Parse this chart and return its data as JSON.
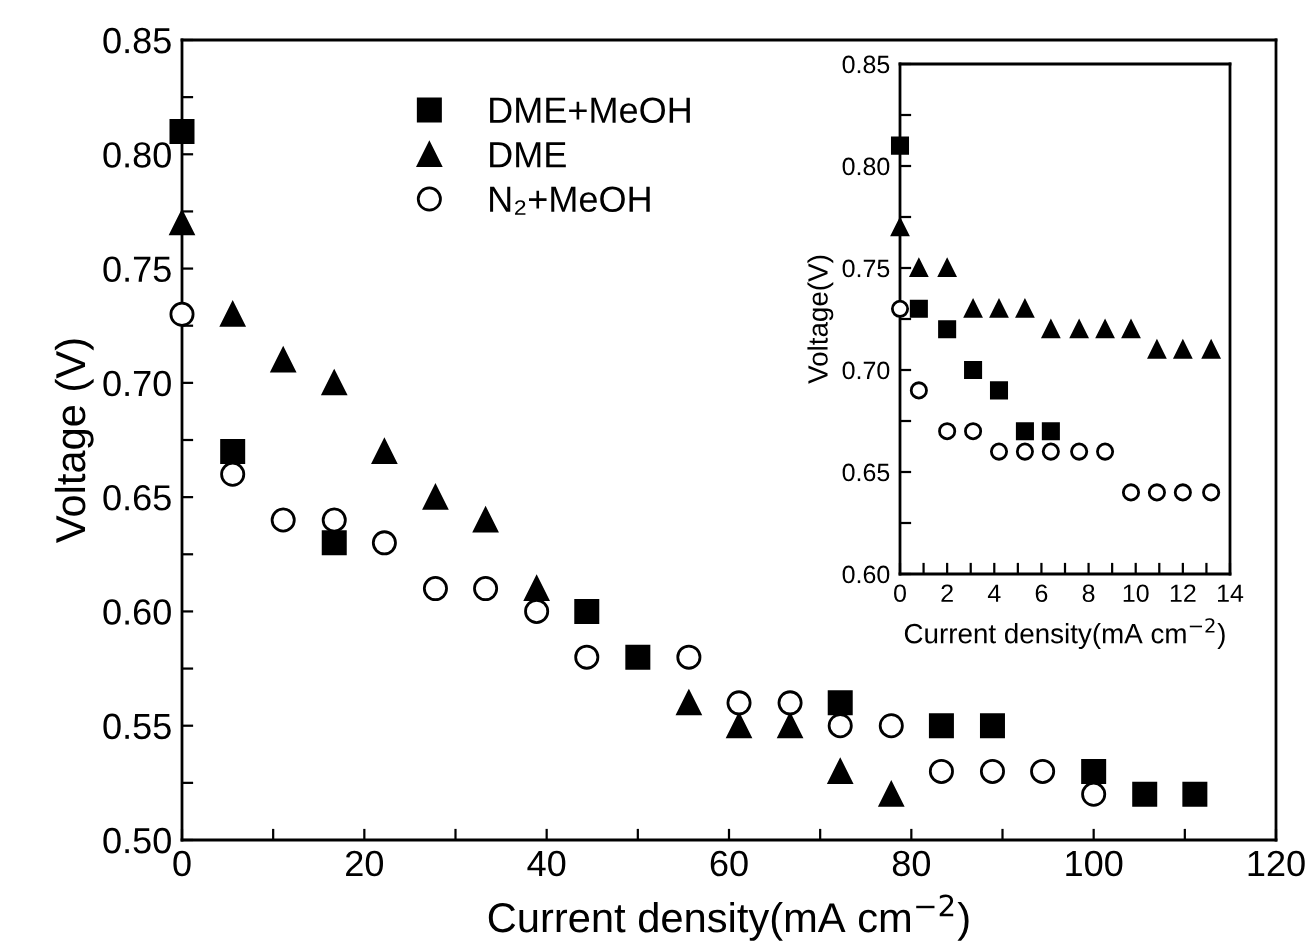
{
  "chart_data": [
    {
      "type": "scatter",
      "xlabel": "Current density(mA cm$^{−2}$)",
      "ylabel": "Voltage (V)",
      "xlim": [
        0,
        120
      ],
      "ylim": [
        0.5,
        0.85
      ],
      "xticks": [
        0,
        {
          "value": 10,
          "label": null
        },
        20,
        {
          "value": 30,
          "label": null
        },
        40,
        {
          "value": 50,
          "label": null
        },
        60,
        {
          "value": 70,
          "label": null
        },
        80,
        {
          "value": 90,
          "label": null
        },
        100,
        {
          "value": 110,
          "label": null
        },
        120
      ],
      "yticks": [
        {
          "value": 0.5,
          "label": "0.50"
        },
        {
          "value": 0.525,
          "label": null
        },
        {
          "value": 0.55,
          "label": "0.55"
        },
        {
          "value": 0.575,
          "label": null
        },
        {
          "value": 0.6,
          "label": "0.60"
        },
        {
          "value": 0.625,
          "label": null
        },
        {
          "value": 0.65,
          "label": "0.65"
        },
        {
          "value": 0.675,
          "label": null
        },
        {
          "value": 0.7,
          "label": "0.70"
        },
        {
          "value": 0.725,
          "label": null
        },
        {
          "value": 0.75,
          "label": "0.75"
        },
        {
          "value": 0.775,
          "label": null
        },
        {
          "value": 0.8,
          "label": "0.80"
        },
        {
          "value": 0.825,
          "label": null
        },
        {
          "value": 0.85,
          "label": "0.85"
        }
      ],
      "grid": false,
      "legend": "top",
      "series": [
        {
          "name": "DME+MeOH",
          "color": "#000000",
          "marker": "square",
          "x": [
            0,
            5.56,
            16.7,
            44.4,
            50,
            72.2,
            83.3,
            88.9,
            100,
            105.6,
            111.1
          ],
          "values": [
            0.81,
            0.67,
            0.63,
            0.6,
            0.58,
            0.56,
            0.55,
            0.55,
            0.53,
            0.52,
            0.52
          ]
        },
        {
          "name": "DME",
          "color": "#000000",
          "marker": "triangle",
          "x": [
            0,
            5.56,
            11.1,
            16.7,
            22.2,
            27.8,
            33.3,
            38.9,
            55.6,
            61.1,
            66.7,
            72.2,
            77.8
          ],
          "values": [
            0.77,
            0.73,
            0.71,
            0.7,
            0.67,
            0.65,
            0.64,
            0.61,
            0.56,
            0.55,
            0.55,
            0.53,
            0.52
          ]
        },
        {
          "name": "N₂+MeOH",
          "color": "#000000",
          "marker": "circle",
          "x": [
            0,
            5.56,
            11.1,
            16.7,
            22.2,
            27.8,
            33.3,
            38.9,
            44.4,
            55.6,
            61.1,
            66.7,
            72.2,
            77.8,
            83.3,
            88.9,
            94.4,
            100
          ],
          "values": [
            0.73,
            0.66,
            0.64,
            0.64,
            0.63,
            0.61,
            0.61,
            0.6,
            0.58,
            0.58,
            0.56,
            0.56,
            0.55,
            0.55,
            0.53,
            0.53,
            0.53,
            0.52
          ]
        }
      ]
    },
    {
      "type": "scatter",
      "xlabel": "Current density(mA cm$^{−2}$)",
      "ylabel": "Voltage(V)",
      "xlim": [
        0,
        14
      ],
      "ylim": [
        0.6,
        0.85
      ],
      "xticks": [
        0,
        {
          "value": 1,
          "label": null
        },
        2,
        {
          "value": 3,
          "label": null
        },
        4,
        {
          "value": 5,
          "label": null
        },
        6,
        {
          "value": 7,
          "label": null
        },
        8,
        {
          "value": 9,
          "label": null
        },
        10,
        {
          "value": 11,
          "label": null
        },
        12,
        {
          "value": 13,
          "label": null
        },
        14
      ],
      "yticks": [
        {
          "value": 0.6,
          "label": "0.60"
        },
        {
          "value": 0.625,
          "label": null
        },
        {
          "value": 0.65,
          "label": "0.65"
        },
        {
          "value": 0.675,
          "label": null
        },
        {
          "value": 0.7,
          "label": "0.70"
        },
        {
          "value": 0.725,
          "label": null
        },
        {
          "value": 0.75,
          "label": "0.75"
        },
        {
          "value": 0.775,
          "label": null
        },
        {
          "value": 0.8,
          "label": "0.80"
        },
        {
          "value": 0.825,
          "label": null
        },
        {
          "value": 0.85,
          "label": "0.85"
        }
      ],
      "grid": false,
      "legend": false,
      "series": [
        {
          "color": "#000000",
          "marker": "square",
          "x": [
            0,
            0.8,
            2,
            3.1,
            4.2,
            5.3,
            6.4
          ],
          "values": [
            0.81,
            0.73,
            0.72,
            0.7,
            0.69,
            0.67,
            0.67
          ]
        },
        {
          "color": "#000000",
          "marker": "triangle",
          "x": [
            0,
            0.8,
            2,
            3.1,
            4.2,
            5.3,
            6.4,
            7.6,
            8.7,
            9.8,
            10.9,
            12,
            13.2
          ],
          "values": [
            0.77,
            0.75,
            0.75,
            0.73,
            0.73,
            0.73,
            0.72,
            0.72,
            0.72,
            0.72,
            0.71,
            0.71,
            0.71
          ]
        },
        {
          "color": "#000000",
          "marker": "circle",
          "x": [
            0,
            0.8,
            2,
            3.1,
            4.2,
            5.3,
            6.4,
            7.6,
            8.7,
            9.8,
            10.9,
            12,
            13.2
          ],
          "values": [
            0.73,
            0.69,
            0.67,
            0.67,
            0.66,
            0.66,
            0.66,
            0.66,
            0.66,
            0.64,
            0.64,
            0.64,
            0.64
          ]
        }
      ]
    }
  ]
}
